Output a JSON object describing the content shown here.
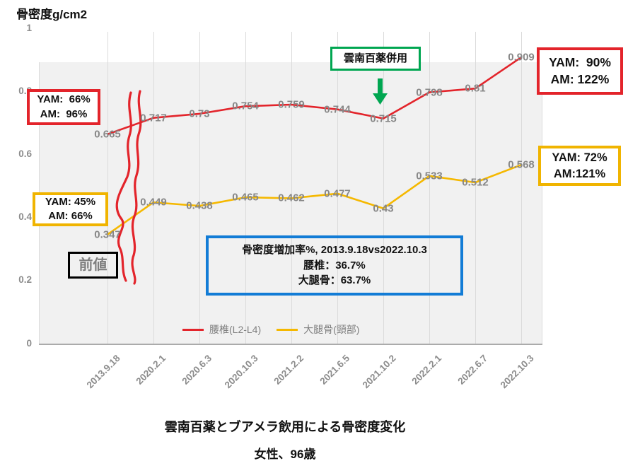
{
  "axis_title": "骨密度g/cm2",
  "chart_data": {
    "type": "line",
    "categories": [
      "2013.9.18",
      "2020.2.1",
      "2020.6.3",
      "2020.10.3",
      "2021.2.2",
      "2021.6.5",
      "2021.10.2",
      "2022.2.1",
      "2022.6.7",
      "2022.10.3"
    ],
    "series": [
      {
        "name": "腰椎(L2-L4)",
        "color": "#e3242b",
        "values": [
          0.665,
          0.717,
          0.73,
          0.754,
          0.759,
          0.744,
          0.715,
          0.798,
          0.81,
          0.909
        ]
      },
      {
        "name": "大腿骨(頸部)",
        "color": "#f5b800",
        "values": [
          0.347,
          0.449,
          0.438,
          0.465,
          0.462,
          0.477,
          0.43,
          0.533,
          0.512,
          0.568
        ]
      }
    ],
    "ylabel": "骨密度g/cm2",
    "ylim": [
      0,
      1
    ],
    "yticks": [
      0,
      0.2,
      0.4,
      0.6,
      0.8,
      1
    ],
    "grid": "vertical",
    "legend_position": "bottom-inside",
    "axis_break": "wavy red lines between 2013.9.18 and 2020.2.1"
  },
  "annotations": {
    "left_red": {
      "lines": [
        "YAM:  66%",
        "AM:  96%"
      ]
    },
    "left_yellow": {
      "lines": [
        "YAM: 45%",
        "AM: 66%"
      ]
    },
    "right_red": {
      "lines": [
        "YAM:  90%",
        "AM: 122%"
      ]
    },
    "right_yellow": {
      "lines": [
        "YAM: 72%",
        "AM:121%"
      ]
    },
    "green_label": "雲南百薬併用",
    "prev_label": "前値",
    "blue_box": {
      "lines": [
        "骨密度増加率%, 2013.9.18vs2022.10.3",
        "腰椎：36.7%",
        "大腿骨：63.7%"
      ]
    }
  },
  "footer": {
    "title": "雲南百薬とブアメラ飲用による骨密度変化",
    "subtitle": "女性、96歳"
  },
  "colors": {
    "red_series": "#e3242b",
    "yellow_series": "#f5b800",
    "green_accent": "#00a651",
    "blue_accent": "#127cd6",
    "plot_background": "#f1f1f1",
    "gridline": "#dbdbdb",
    "tick_text": "#8c8c8c"
  }
}
